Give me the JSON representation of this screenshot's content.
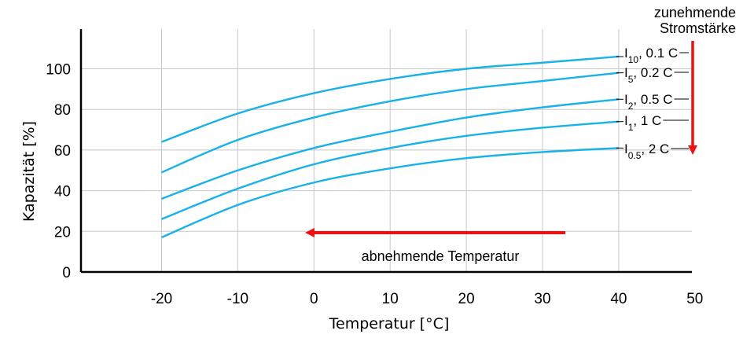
{
  "chart_data": {
    "type": "line",
    "title": "",
    "xlabel": "Temperatur [°C]",
    "ylabel": "Kapazität [%]",
    "xlim": [
      -30,
      50
    ],
    "ylim": [
      0,
      115
    ],
    "x_ticks": [
      -20,
      -10,
      0,
      10,
      20,
      30,
      40,
      50
    ],
    "y_ticks": [
      0,
      20,
      40,
      60,
      80,
      100
    ],
    "x": [
      -20,
      -10,
      0,
      10,
      20,
      30,
      40
    ],
    "grid": true,
    "series_color": "#19b2e8",
    "series": [
      {
        "name": "I10, 0.1 C",
        "label_main": "I",
        "label_sub": "10",
        "label_rest": ", 0.1 C",
        "values": [
          64,
          78,
          88,
          95,
          100,
          103,
          106
        ]
      },
      {
        "name": "I5, 0.2 C",
        "label_main": "I",
        "label_sub": "5",
        "label_rest": ", 0.2 C",
        "values": [
          49,
          65,
          76,
          84,
          90,
          94,
          98
        ]
      },
      {
        "name": "I2, 0.5 C",
        "label_main": "I",
        "label_sub": "2",
        "label_rest": ", 0.5 C",
        "values": [
          36,
          50,
          61,
          69,
          76,
          81,
          85
        ]
      },
      {
        "name": "I1, 1 C",
        "label_main": "I",
        "label_sub": "1",
        "label_rest": ", 1 C",
        "values": [
          26,
          41,
          53,
          61,
          67,
          71,
          74
        ]
      },
      {
        "name": "I0.5, 2 C",
        "label_main": "I",
        "label_sub": "0.5",
        "label_rest": ", 2 C",
        "values": [
          17,
          33,
          44,
          51,
          56,
          59,
          61
        ]
      }
    ],
    "annotations": {
      "stromstaerke_line1": "zunehmende",
      "stromstaerke_line2": "Stromstärke",
      "temperatur": "abnehmende Temperatur",
      "arrow_color": "#ee1111"
    }
  }
}
